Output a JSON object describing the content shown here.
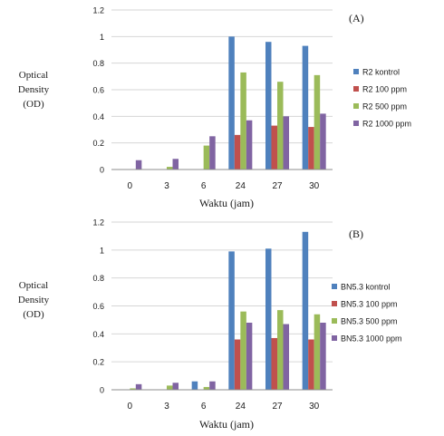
{
  "figure": {
    "panels": [
      {
        "label": "(A)",
        "ylabel_lines": [
          "Optical",
          "Density",
          "(OD)"
        ]
      },
      {
        "label": "(B)",
        "ylabel_lines": [
          "Optical",
          "Density",
          "(OD)"
        ]
      }
    ]
  },
  "chart_data": [
    {
      "type": "bar",
      "title": "(A)",
      "xlabel": "Waktu (jam)",
      "ylabel": "Optical Density (OD)",
      "categories": [
        "0",
        "3",
        "6",
        "24",
        "27",
        "30"
      ],
      "ylim": [
        0,
        1.2
      ],
      "yticks": [
        "0",
        "0.2",
        "0.4",
        "0.6",
        "0.8",
        "1",
        "1.2"
      ],
      "grid": true,
      "legend_position": "right",
      "series": [
        {
          "name": "R2 kontrol",
          "color": "#4f81bd",
          "values": [
            0.0,
            0.0,
            0.0,
            1.0,
            0.96,
            0.93
          ]
        },
        {
          "name": "R2 100 ppm",
          "color": "#c0504d",
          "values": [
            0.0,
            0.0,
            0.0,
            0.26,
            0.33,
            0.32
          ]
        },
        {
          "name": "R2 500 ppm",
          "color": "#9bbb59",
          "values": [
            0.0,
            0.02,
            0.18,
            0.73,
            0.66,
            0.71
          ]
        },
        {
          "name": "R2 1000 ppm",
          "color": "#8064a2",
          "values": [
            0.07,
            0.08,
            0.25,
            0.37,
            0.4,
            0.42
          ]
        }
      ]
    },
    {
      "type": "bar",
      "title": "(B)",
      "xlabel": "Waktu (jam)",
      "ylabel": "Optical Density (OD)",
      "categories": [
        "0",
        "3",
        "6",
        "24",
        "27",
        "30"
      ],
      "ylim": [
        0,
        1.2
      ],
      "yticks": [
        "0",
        "0.2",
        "0.4",
        "0.6",
        "0.8",
        "1",
        "1.2"
      ],
      "grid": true,
      "legend_position": "right",
      "series": [
        {
          "name": "BN5.3 kontrol",
          "color": "#4f81bd",
          "values": [
            0.0,
            0.0,
            0.06,
            0.99,
            1.01,
            1.13
          ]
        },
        {
          "name": "BN5.3 100 ppm",
          "color": "#c0504d",
          "values": [
            0.0,
            0.0,
            0.0,
            0.36,
            0.37,
            0.36
          ]
        },
        {
          "name": "BN5.3 500 ppm",
          "color": "#9bbb59",
          "values": [
            0.01,
            0.03,
            0.02,
            0.56,
            0.57,
            0.54
          ]
        },
        {
          "name": "BN5.3 1000 ppm",
          "color": "#8064a2",
          "values": [
            0.04,
            0.05,
            0.06,
            0.48,
            0.47,
            0.48
          ]
        }
      ]
    }
  ]
}
